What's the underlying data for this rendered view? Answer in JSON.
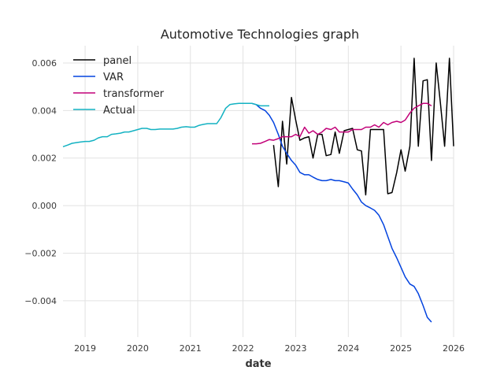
{
  "chart_data": {
    "type": "line",
    "title": "Automotive Technologies graph",
    "xlabel": "date",
    "ylabel": "",
    "xlim": [
      2018.58,
      2026.0
    ],
    "ylim": [
      -0.00553,
      0.00673
    ],
    "x_ticks": [
      2019,
      2020,
      2021,
      2022,
      2023,
      2024,
      2025,
      2026
    ],
    "x_tick_labels": [
      "2019",
      "2020",
      "2021",
      "2022",
      "2023",
      "2024",
      "2025",
      "2026"
    ],
    "y_ticks": [
      -0.004,
      -0.002,
      0.0,
      0.002,
      0.004,
      0.006
    ],
    "y_tick_labels": [
      "−0.004",
      "−0.002",
      "0.000",
      "0.002",
      "0.004",
      "0.006"
    ],
    "grid": true,
    "legend_position": "top-left",
    "series": [
      {
        "name": "panel",
        "color": "#000000",
        "x": [
          2022.58,
          2022.67,
          2022.75,
          2022.83,
          2022.92,
          2023.0,
          2023.08,
          2023.17,
          2023.25,
          2023.33,
          2023.42,
          2023.5,
          2023.58,
          2023.67,
          2023.75,
          2023.83,
          2023.92,
          2024.0,
          2024.08,
          2024.17,
          2024.25,
          2024.33,
          2024.42,
          2024.5,
          2024.58,
          2024.67,
          2024.75,
          2024.83,
          2024.92,
          2025.0,
          2025.08,
          2025.17,
          2025.25,
          2025.33,
          2025.42,
          2025.5,
          2025.58,
          2025.67,
          2025.75,
          2025.83,
          2025.92,
          2026.0
        ],
        "y": [
          0.00255,
          0.0008,
          0.00355,
          0.00175,
          0.00455,
          0.0036,
          0.00275,
          0.00285,
          0.0029,
          0.002,
          0.003,
          0.003,
          0.0021,
          0.00215,
          0.0031,
          0.0022,
          0.00315,
          0.0032,
          0.00325,
          0.00235,
          0.0023,
          0.00045,
          0.0032,
          0.0032,
          0.0032,
          0.0032,
          0.0005,
          0.00055,
          0.0014,
          0.00235,
          0.00145,
          0.0025,
          0.0062,
          0.0025,
          0.00525,
          0.0053,
          0.0019,
          0.006,
          0.0043,
          0.0025,
          0.0062,
          0.0025
        ]
      },
      {
        "name": "VAR",
        "color": "#0343df",
        "x": [
          2022.17,
          2022.25,
          2022.33,
          2022.42,
          2022.5,
          2022.58,
          2022.67,
          2022.75,
          2022.83,
          2022.92,
          2023.0,
          2023.08,
          2023.17,
          2023.25,
          2023.33,
          2023.42,
          2023.5,
          2023.58,
          2023.67,
          2023.75,
          2023.83,
          2023.92,
          2024.0,
          2024.08,
          2024.17,
          2024.25,
          2024.33,
          2024.42,
          2024.5,
          2024.58,
          2024.67,
          2024.75,
          2024.83,
          2024.92,
          2025.0,
          2025.08,
          2025.17,
          2025.25,
          2025.33,
          2025.42,
          2025.5,
          2025.58
        ],
        "y": [
          0.0043,
          0.00425,
          0.0041,
          0.004,
          0.0038,
          0.0035,
          0.003,
          0.0025,
          0.0022,
          0.0019,
          0.0017,
          0.0014,
          0.0013,
          0.0013,
          0.0012,
          0.0011,
          0.00105,
          0.00105,
          0.0011,
          0.00105,
          0.00105,
          0.001,
          0.00095,
          0.0007,
          0.00045,
          0.00015,
          0.0,
          -0.0001,
          -0.0002,
          -0.0004,
          -0.0008,
          -0.0013,
          -0.0018,
          -0.0022,
          -0.0026,
          -0.003,
          -0.0033,
          -0.0034,
          -0.0037,
          -0.0042,
          -0.0047,
          -0.0049
        ]
      },
      {
        "name": "transformer",
        "color": "#c20078",
        "x": [
          2022.17,
          2022.25,
          2022.33,
          2022.42,
          2022.5,
          2022.58,
          2022.67,
          2022.75,
          2022.83,
          2022.92,
          2023.0,
          2023.08,
          2023.17,
          2023.25,
          2023.33,
          2023.42,
          2023.5,
          2023.58,
          2023.67,
          2023.75,
          2023.83,
          2023.92,
          2024.0,
          2024.08,
          2024.17,
          2024.25,
          2024.33,
          2024.42,
          2024.5,
          2024.58,
          2024.67,
          2024.75,
          2024.83,
          2024.92,
          2025.0,
          2025.08,
          2025.17,
          2025.25,
          2025.33,
          2025.42,
          2025.5,
          2025.58
        ],
        "y": [
          0.0026,
          0.0026,
          0.00262,
          0.0027,
          0.00278,
          0.00275,
          0.00282,
          0.0029,
          0.0029,
          0.0029,
          0.003,
          0.0029,
          0.0033,
          0.00305,
          0.00315,
          0.003,
          0.0031,
          0.00325,
          0.0032,
          0.0033,
          0.0031,
          0.0031,
          0.0031,
          0.0032,
          0.0032,
          0.0032,
          0.0033,
          0.0033,
          0.0034,
          0.0033,
          0.0035,
          0.0034,
          0.0035,
          0.00355,
          0.0035,
          0.0036,
          0.0039,
          0.0041,
          0.0042,
          0.0043,
          0.0043,
          0.0042
        ]
      },
      {
        "name": "Actual",
        "color": "#13b2c2",
        "x": [
          2018.58,
          2018.67,
          2018.75,
          2018.83,
          2018.92,
          2019.0,
          2019.08,
          2019.17,
          2019.25,
          2019.33,
          2019.42,
          2019.5,
          2019.58,
          2019.67,
          2019.75,
          2019.83,
          2019.92,
          2020.0,
          2020.08,
          2020.17,
          2020.25,
          2020.33,
          2020.42,
          2020.5,
          2020.58,
          2020.67,
          2020.75,
          2020.83,
          2020.92,
          2021.0,
          2021.08,
          2021.17,
          2021.25,
          2021.33,
          2021.42,
          2021.5,
          2021.58,
          2021.67,
          2021.75,
          2021.83,
          2021.92,
          2022.0,
          2022.08,
          2022.17,
          2022.25,
          2022.33,
          2022.42,
          2022.5
        ],
        "y": [
          0.00248,
          0.00255,
          0.00262,
          0.00265,
          0.00268,
          0.0027,
          0.0027,
          0.00275,
          0.00285,
          0.0029,
          0.0029,
          0.003,
          0.00302,
          0.00305,
          0.0031,
          0.0031,
          0.00315,
          0.0032,
          0.00325,
          0.00325,
          0.0032,
          0.0032,
          0.00322,
          0.00322,
          0.00322,
          0.00322,
          0.00325,
          0.0033,
          0.00332,
          0.0033,
          0.0033,
          0.00338,
          0.00342,
          0.00345,
          0.00345,
          0.00345,
          0.0037,
          0.0041,
          0.00425,
          0.00428,
          0.0043,
          0.0043,
          0.0043,
          0.0043,
          0.00425,
          0.0042,
          0.0042,
          0.0042
        ]
      }
    ]
  }
}
